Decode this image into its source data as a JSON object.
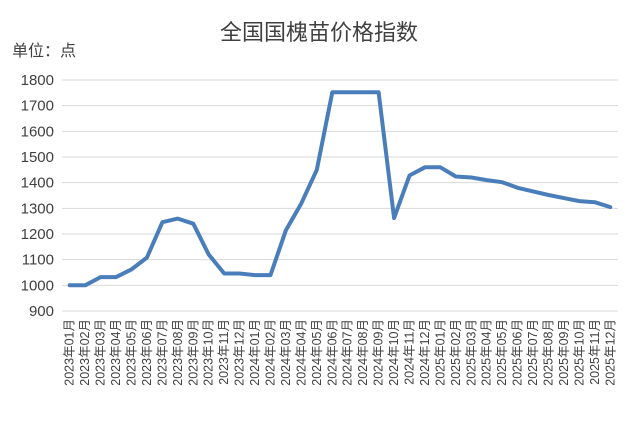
{
  "chart_data": {
    "type": "line",
    "title": "全国国槐苗价格指数",
    "unit_label": "单位：点",
    "ylim": [
      900,
      1800
    ],
    "yticks": [
      900,
      1000,
      1100,
      1200,
      1300,
      1400,
      1500,
      1600,
      1700,
      1800
    ],
    "grid": true,
    "line_color": "#4a7ebb",
    "x": [
      "2023年01月",
      "2023年02月",
      "2023年03月",
      "2023年04月",
      "2023年05月",
      "2023年06月",
      "2023年07月",
      "2023年08月",
      "2023年09月",
      "2023年10月",
      "2023年11月",
      "2023年12月",
      "2024年01月",
      "2024年02月",
      "2024年03月",
      "2024年04月",
      "2024年05月",
      "2024年06月",
      "2024年07月",
      "2024年08月",
      "2024年09月",
      "2024年10月",
      "2024年11月",
      "2024年12月",
      "2025年01月",
      "2025年02月",
      "2025年03月",
      "2025年04月",
      "2025年05月",
      "2025年06月",
      "2025年07月",
      "2025年08月",
      "2025年09月",
      "2025年10月",
      "2025年11月",
      "2025年12月"
    ],
    "values": [
      1000,
      1000,
      1032,
      1032,
      1062,
      1108,
      1246,
      1260,
      1240,
      1120,
      1046,
      1046,
      1040,
      1040,
      1215,
      1320,
      1450,
      1752,
      1752,
      1752,
      1752,
      1262,
      1428,
      1460,
      1460,
      1424,
      1420,
      1410,
      1402,
      1380,
      1366,
      1352,
      1340,
      1328,
      1324,
      1305
    ]
  }
}
